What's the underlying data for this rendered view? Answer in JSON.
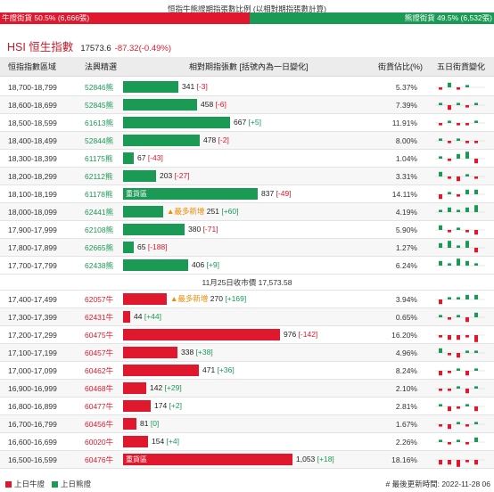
{
  "page_title": "恒指牛熊證期指張數比例 (以相對期指張數計算)",
  "ratio": {
    "bull_label": "牛證街貨 50.5% (6,666張)",
    "bear_label": "熊證街貨 49.5% (6,532張)",
    "bull_fraction": 0.505,
    "colors": {
      "bull": "#e0182d",
      "bear": "#1b9a55"
    }
  },
  "index": {
    "name": "HSI 恒生指數",
    "price": "17573.6",
    "change": "-87.32(-0.49%)"
  },
  "headers": {
    "range": "恒指指數區域",
    "code": "法興精選",
    "contracts": "相對期指張數 [括號內為一日變化]",
    "pct": "街貨佔比(%)",
    "trend": "五日街貨變化"
  },
  "max_contracts": 1053,
  "bear_rows": [
    {
      "range": "18,700-18,799",
      "code": "52846熊",
      "value": 341,
      "value_text": "341",
      "delta": "[-3]",
      "pct": "5.37%",
      "tag": "",
      "note": "",
      "spark": [
        -1,
        2,
        -1,
        1,
        0
      ]
    },
    {
      "range": "18,600-18,699",
      "code": "52845熊",
      "value": 458,
      "value_text": "458",
      "delta": "[-6]",
      "pct": "7.39%",
      "tag": "",
      "note": "",
      "spark": [
        1,
        -2,
        1,
        -1,
        1
      ]
    },
    {
      "range": "18,500-18,599",
      "code": "61613熊",
      "value": 667,
      "value_text": "667",
      "delta": "[+5]",
      "pct": "11.91%",
      "tag": "",
      "note": "",
      "spark": [
        -1,
        1,
        -1,
        -1,
        1
      ]
    },
    {
      "range": "18,400-18,499",
      "code": "52844熊",
      "value": 478,
      "value_text": "478",
      "delta": "[-2]",
      "pct": "8.00%",
      "tag": "",
      "note": "",
      "spark": [
        1,
        -1,
        1,
        -1,
        -1
      ]
    },
    {
      "range": "18,300-18,399",
      "code": "61175熊",
      "value": 67,
      "value_text": "67",
      "delta": "[-43]",
      "pct": "1.04%",
      "tag": "",
      "note": "",
      "spark": [
        1,
        -1,
        2,
        3,
        -2
      ]
    },
    {
      "range": "18,200-18,299",
      "code": "62112熊",
      "value": 203,
      "value_text": "203",
      "delta": "[-27]",
      "pct": "3.31%",
      "tag": "",
      "note": "",
      "spark": [
        2,
        -1,
        -2,
        1,
        -1
      ]
    },
    {
      "range": "18,100-18,199",
      "code": "61178熊",
      "value": 837,
      "value_text": "837",
      "delta": "[-49]",
      "pct": "14.11%",
      "tag": "重貨區",
      "note": "",
      "spark": [
        -2,
        1,
        -1,
        2,
        2
      ]
    },
    {
      "range": "18,000-18,099",
      "code": "62441熊",
      "value": 251,
      "value_text": "251",
      "delta": "[+60]",
      "pct": "4.19%",
      "tag": "",
      "note": "▲最多新增",
      "spark": [
        1,
        2,
        1,
        2,
        3
      ]
    },
    {
      "range": "17,900-17,999",
      "code": "62108熊",
      "value": 380,
      "value_text": "380",
      "delta": "[-71]",
      "pct": "5.90%",
      "tag": "",
      "note": "",
      "spark": [
        2,
        -1,
        1,
        -1,
        -2
      ]
    },
    {
      "range": "17,800-17,899",
      "code": "62665熊",
      "value": 65,
      "value_text": "65",
      "delta": "[-188]",
      "pct": "1.27%",
      "tag": "",
      "note": "",
      "spark": [
        2,
        3,
        1,
        3,
        -2
      ]
    },
    {
      "range": "17,700-17,799",
      "code": "62438熊",
      "value": 406,
      "value_text": "406",
      "delta": "[+9]",
      "pct": "6.24%",
      "tag": "",
      "note": "",
      "spark": [
        2,
        1,
        3,
        2,
        1
      ]
    }
  ],
  "close_label": "11月25日收市價 17,573.58",
  "bull_rows": [
    {
      "range": "17,400-17,499",
      "code": "62057牛",
      "value": 270,
      "value_text": "270",
      "delta": "[+169]",
      "pct": "3.94%",
      "tag": "",
      "note": "▲最多新增",
      "spark": [
        -2,
        1,
        1,
        2,
        2
      ]
    },
    {
      "range": "17,300-17,399",
      "code": "62431牛",
      "value": 44,
      "value_text": "44",
      "delta": "[+44]",
      "pct": "0.65%",
      "tag": "",
      "note": "",
      "spark": [
        1,
        -1,
        1,
        -2,
        2
      ]
    },
    {
      "range": "17,200-17,299",
      "code": "60475牛",
      "value": 976,
      "value_text": "976",
      "delta": "[-142]",
      "pct": "16.20%",
      "tag": "",
      "note": "",
      "spark": [
        -1,
        -2,
        -2,
        -1,
        -3
      ]
    },
    {
      "range": "17,100-17,199",
      "code": "60457牛",
      "value": 338,
      "value_text": "338",
      "delta": "[+38]",
      "pct": "4.96%",
      "tag": "",
      "note": "",
      "spark": [
        2,
        -1,
        -2,
        1,
        1
      ]
    },
    {
      "range": "17,000-17,099",
      "code": "60462牛",
      "value": 471,
      "value_text": "471",
      "delta": "[+36]",
      "pct": "8.24%",
      "tag": "",
      "note": "",
      "spark": [
        -2,
        -1,
        1,
        -2,
        1
      ]
    },
    {
      "range": "16,900-16,999",
      "code": "60468牛",
      "value": 142,
      "value_text": "142",
      "delta": "[+29]",
      "pct": "2.10%",
      "tag": "",
      "note": "",
      "spark": [
        -1,
        -1,
        1,
        -2,
        1
      ]
    },
    {
      "range": "16,800-16,899",
      "code": "60477牛",
      "value": 174,
      "value_text": "174",
      "delta": "[+2]",
      "pct": "2.81%",
      "tag": "",
      "note": "",
      "spark": [
        1,
        -2,
        -1,
        1,
        -2
      ]
    },
    {
      "range": "16,700-16,799",
      "code": "60456牛",
      "value": 81,
      "value_text": "81",
      "delta": "[0]",
      "pct": "1.67%",
      "tag": "",
      "note": "",
      "spark": [
        -1,
        -2,
        1,
        -1,
        1
      ]
    },
    {
      "range": "16,600-16,699",
      "code": "60020牛",
      "value": 154,
      "value_text": "154",
      "delta": "[+4]",
      "pct": "2.26%",
      "tag": "",
      "note": "",
      "spark": [
        1,
        -1,
        1,
        -1,
        2
      ]
    },
    {
      "range": "16,500-16,599",
      "code": "60476牛",
      "value": 1053,
      "value_text": "1,053",
      "delta": "[+18]",
      "pct": "18.16%",
      "tag": "重貨區",
      "note": "",
      "spark": [
        -2,
        -2,
        -3,
        -1,
        -2
      ]
    }
  ],
  "legend": {
    "up_bull": "上日牛證",
    "up_bear": "上日熊證"
  },
  "updated": "# 最後更新時間: 2022-11-28 06"
}
